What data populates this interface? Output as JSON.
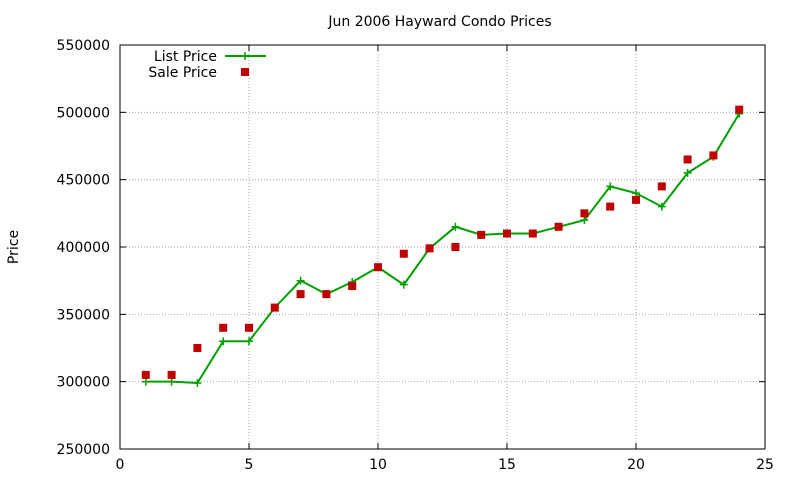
{
  "chart_data": {
    "type": "line",
    "title": "Jun 2006 Hayward Condo Prices",
    "xlabel": "",
    "ylabel": "Price",
    "xlim": [
      0,
      25
    ],
    "ylim": [
      250000,
      550000
    ],
    "xticks": [
      0,
      5,
      10,
      15,
      20,
      25
    ],
    "yticks": [
      250000,
      300000,
      350000,
      400000,
      450000,
      500000,
      550000
    ],
    "grid": true,
    "legend_position": "top-left",
    "series": [
      {
        "name": "List Price",
        "style": "linespoints",
        "marker": "plus",
        "color": "#00a000",
        "x": [
          1,
          2,
          3,
          4,
          5,
          6,
          7,
          8,
          9,
          10,
          11,
          12,
          13,
          14,
          15,
          16,
          17,
          18,
          19,
          20,
          21,
          22,
          23,
          24
        ],
        "values": [
          300000,
          300000,
          299000,
          330000,
          330000,
          355000,
          375000,
          365000,
          374000,
          385000,
          372000,
          399000,
          415000,
          409000,
          410000,
          410000,
          415000,
          420000,
          445000,
          440000,
          430000,
          455000,
          467000,
          499000
        ]
      },
      {
        "name": "Sale Price",
        "style": "points",
        "marker": "square",
        "color": "#c00000",
        "x": [
          1,
          2,
          3,
          4,
          5,
          6,
          7,
          8,
          9,
          10,
          11,
          12,
          13,
          14,
          15,
          16,
          17,
          18,
          19,
          20,
          21,
          22,
          23,
          24
        ],
        "values": [
          305000,
          305000,
          325000,
          340000,
          340000,
          355000,
          365000,
          365000,
          371000,
          385000,
          395000,
          399000,
          400000,
          409000,
          410000,
          410000,
          415000,
          425000,
          430000,
          435000,
          445000,
          465000,
          468000,
          502000
        ]
      }
    ]
  }
}
